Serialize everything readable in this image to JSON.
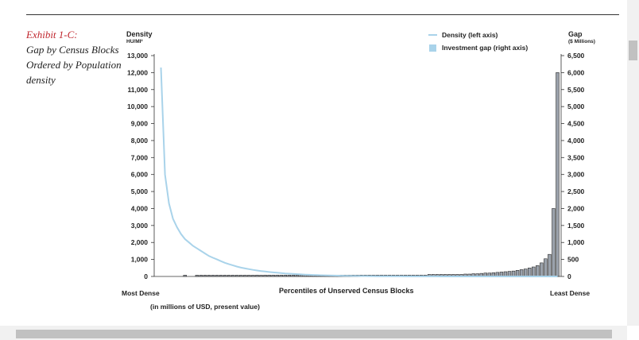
{
  "exhibit": {
    "label": "Exhibit 1-C:",
    "title": "Gap by Census Blocks Ordered by Population density"
  },
  "colors": {
    "density_line": "#a9d3ea",
    "gap_bar": "#9aa1ab",
    "gap_bar_outline": "#2a2a2a",
    "axis": "#333333"
  },
  "chart_data": {
    "type": "bar",
    "title": "",
    "xlabel": "Percentiles of Unserved Census Blocks",
    "x_start_label": "Most Dense",
    "x_end_label": "Least Dense",
    "x_note": "(in millions of USD, present value)",
    "left_axis": {
      "title": "Density",
      "unit": "HU/MI²",
      "ylim": [
        0,
        13000
      ],
      "ticks": [
        "0",
        "1,000",
        "2,000",
        "3,000",
        "4,000",
        "5,000",
        "6,000",
        "7,000",
        "8,000",
        "9,000",
        "10,000",
        "11,000",
        "12,000",
        "13,000"
      ]
    },
    "right_axis": {
      "title": "Gap",
      "unit": "($ Millions)",
      "ylim": [
        0,
        6500
      ],
      "ticks": [
        "0",
        "500",
        "1,000",
        "1,500",
        "2,000",
        "2,500",
        "3,000",
        "3,500",
        "4,000",
        "4,500",
        "5,000",
        "5,500",
        "6,000",
        "6,500"
      ]
    },
    "legend": {
      "position": "top-right",
      "entries": [
        "Density (left axis)",
        "Investment gap (right axis)"
      ]
    },
    "x": [
      1,
      2,
      3,
      4,
      5,
      6,
      7,
      8,
      9,
      10,
      11,
      12,
      13,
      14,
      15,
      16,
      17,
      18,
      19,
      20,
      21,
      22,
      23,
      24,
      25,
      26,
      27,
      28,
      29,
      30,
      31,
      32,
      33,
      34,
      35,
      36,
      37,
      38,
      39,
      40,
      41,
      42,
      43,
      44,
      45,
      46,
      47,
      48,
      49,
      50,
      51,
      52,
      53,
      54,
      55,
      56,
      57,
      58,
      59,
      60,
      61,
      62,
      63,
      64,
      65,
      66,
      67,
      68,
      69,
      70,
      71,
      72,
      73,
      74,
      75,
      76,
      77,
      78,
      79,
      80,
      81,
      82,
      83,
      84,
      85,
      86,
      87,
      88,
      89,
      90,
      91,
      92,
      93,
      94,
      95,
      96,
      97,
      98,
      99,
      100
    ],
    "series": [
      {
        "name": "Investment gap (right axis)",
        "axis": "right",
        "kind": "bar",
        "values": [
          0,
          0,
          0,
          0,
          0,
          0,
          20,
          0,
          0,
          20,
          20,
          20,
          20,
          20,
          20,
          20,
          20,
          20,
          20,
          20,
          20,
          20,
          20,
          30,
          40,
          30,
          40,
          40,
          40,
          40,
          40,
          40,
          40,
          40,
          40,
          40,
          40,
          40,
          40,
          40,
          40,
          40,
          40,
          40,
          40,
          40,
          40,
          40,
          40,
          40,
          40,
          40,
          40,
          40,
          40,
          40,
          40,
          40,
          40,
          40,
          40,
          40,
          40,
          40,
          40,
          40,
          40,
          60,
          60,
          60,
          60,
          60,
          60,
          60,
          60,
          60,
          70,
          70,
          80,
          80,
          90,
          100,
          100,
          110,
          120,
          130,
          140,
          150,
          160,
          180,
          200,
          220,
          250,
          280,
          320,
          400,
          520,
          650,
          2000,
          6000
        ]
      },
      {
        "name": "Density (left axis)",
        "axis": "left",
        "kind": "line",
        "values": [
          12300,
          6000,
          4300,
          3400,
          2900,
          2500,
          2200,
          2000,
          1800,
          1650,
          1500,
          1350,
          1200,
          1100,
          1000,
          900,
          800,
          720,
          650,
          580,
          520,
          470,
          430,
          390,
          350,
          320,
          290,
          260,
          240,
          220,
          200,
          180,
          165,
          150,
          135,
          120,
          108,
          97,
          88,
          80,
          72,
          65,
          58,
          52,
          47,
          42,
          38,
          34,
          30,
          27,
          24,
          22,
          20,
          18,
          16,
          14,
          12,
          11,
          10,
          9,
          8,
          7,
          6,
          5,
          5,
          4,
          4,
          3,
          3,
          3,
          2,
          2,
          2,
          2,
          2,
          1,
          1,
          1,
          1,
          1,
          1,
          1,
          1,
          1,
          1,
          1,
          1,
          1,
          1,
          1,
          1,
          1,
          1,
          1,
          1,
          1,
          1,
          1,
          1,
          1
        ]
      }
    ]
  },
  "scrollbars": {
    "vertical": "visible",
    "horizontal": "visible"
  }
}
